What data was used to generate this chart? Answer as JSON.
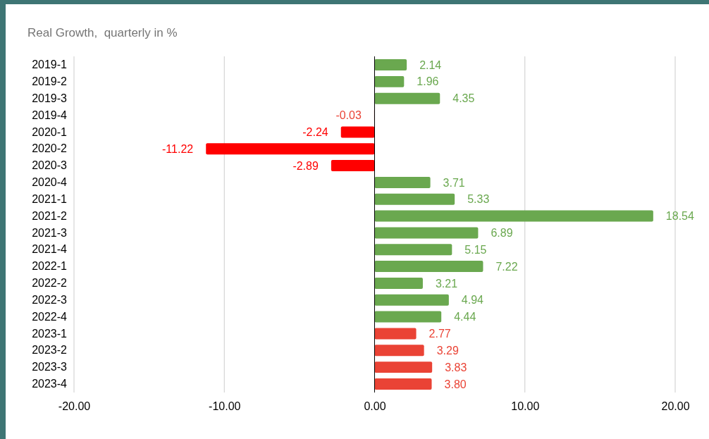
{
  "chart_data": {
    "type": "bar",
    "orientation": "horizontal",
    "title": "Real Growth,  quarterly in %",
    "categories": [
      "2019-1",
      "2019-2",
      "2019-3",
      "2019-4",
      "2020-1",
      "2020-2",
      "2020-3",
      "2020-4",
      "2021-1",
      "2021-2",
      "2021-3",
      "2021-4",
      "2022-1",
      "2022-2",
      "2022-3",
      "2022-4",
      "2023-1",
      "2023-2",
      "2023-3",
      "2023-4"
    ],
    "values": [
      2.14,
      1.96,
      4.35,
      -0.03,
      -2.24,
      -11.22,
      -2.89,
      3.71,
      5.33,
      18.54,
      6.89,
      5.15,
      7.22,
      3.21,
      4.94,
      4.44,
      2.77,
      3.29,
      3.83,
      3.8
    ],
    "value_labels": [
      "2.14",
      "1.96",
      "4.35",
      "-0.03",
      "-2.24",
      "-11.22",
      "-2.89",
      "3.71",
      "5.33",
      "18.54",
      "6.89",
      "5.15",
      "7.22",
      "3.21",
      "4.94",
      "4.44",
      "2.77",
      "3.29",
      "3.83",
      "3.80"
    ],
    "colors": [
      "#6aa84f",
      "#6aa84f",
      "#6aa84f",
      "#ea4335",
      "#ff0000",
      "#ff0000",
      "#ff0000",
      "#6aa84f",
      "#6aa84f",
      "#6aa84f",
      "#6aa84f",
      "#6aa84f",
      "#6aa84f",
      "#6aa84f",
      "#6aa84f",
      "#6aa84f",
      "#ea4335",
      "#ea4335",
      "#ea4335",
      "#ea4335"
    ],
    "xlim": [
      -20,
      20
    ],
    "xticks": [
      {
        "value": -20,
        "label": "-20.00"
      },
      {
        "value": -10,
        "label": "-10.00"
      },
      {
        "value": 0,
        "label": "0.00"
      },
      {
        "value": 10,
        "label": "10.00"
      },
      {
        "value": 20,
        "label": "20.00"
      }
    ],
    "grid": "x"
  }
}
